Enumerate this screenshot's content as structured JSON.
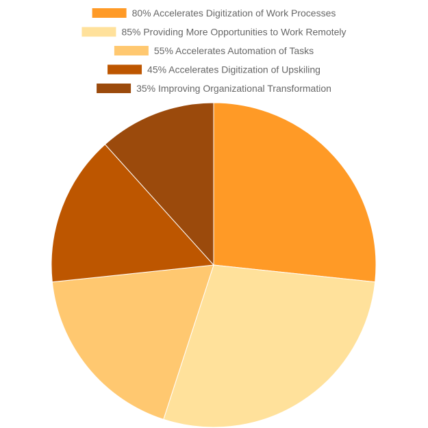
{
  "chart_data": {
    "type": "pie",
    "title": "",
    "legend_position": "top",
    "categories": [
      "80% Accelerates Digitization of Work Processes",
      "85% Providing More Opportunities to Work Remotely",
      "55% Accelerates Automation of Tasks",
      "45% Accelerates Digitization of Upskiling",
      "35% Improving Organizational Transformation"
    ],
    "values": [
      80,
      85,
      55,
      45,
      35
    ],
    "colors": [
      "#ff9a26",
      "#ffe19b",
      "#ffc870",
      "#bd5600",
      "#9b4a0c"
    ]
  }
}
